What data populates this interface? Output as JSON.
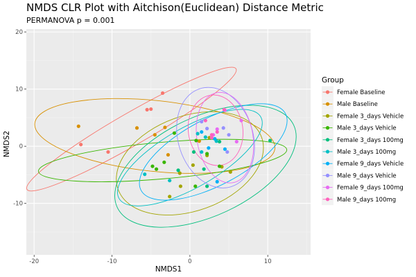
{
  "chart_data": {
    "type": "scatter",
    "title": "NMDS CLR Plot with Aitchison(Euclidean) Distance Metric",
    "subtitle": "PERMANOVA p = 0.001",
    "xlabel": "NMDS1",
    "ylabel": "NMDS2",
    "xlim": [
      -21,
      15.5
    ],
    "ylim": [
      -19,
      20.5
    ],
    "x_ticks": [
      -20,
      -10,
      0,
      10
    ],
    "y_ticks": [
      -10,
      0,
      10,
      20
    ],
    "grid": true,
    "legend_title": "Group",
    "legend_position": "right",
    "series": [
      {
        "name": "Female Baseline",
        "color": "#F8766D",
        "points": [
          [
            -3.5,
            9.3
          ],
          [
            -5.5,
            6.4
          ],
          [
            -5.0,
            6.5
          ],
          [
            -10.5,
            -1.0
          ],
          [
            -14.0,
            0.3
          ]
        ],
        "ellipse": {
          "cx": -7.5,
          "cy": 3.0,
          "rx": 15.5,
          "ry": 2.8,
          "angle": 30
        }
      },
      {
        "name": "Male Baseline",
        "color": "#D89000",
        "points": [
          [
            -14.3,
            3.5
          ],
          [
            -6.8,
            3.2
          ],
          [
            -4.5,
            2.0
          ],
          [
            -3.2,
            3.3
          ],
          [
            -2.8,
            -1.5
          ],
          [
            1.2,
            0.9
          ]
        ],
        "ellipse": {
          "cx": -4.5,
          "cy": 1.8,
          "rx": 15.5,
          "ry": 6.2,
          "angle": -6
        }
      },
      {
        "name": "Female 3_days Vehicle",
        "color": "#A3A500",
        "points": [
          [
            -2.6,
            -8.8
          ],
          [
            -1.2,
            -7.0
          ],
          [
            -1.3,
            -4.7
          ],
          [
            0.4,
            -3.3
          ],
          [
            2.2,
            -1.6
          ],
          [
            4.1,
            -3.6
          ],
          [
            5.2,
            -4.5
          ],
          [
            2.5,
            1.5
          ]
        ],
        "ellipse": {
          "cx": 0.0,
          "cy": -3.0,
          "rx": 9.8,
          "ry": 8.3,
          "angle": 20
        }
      },
      {
        "name": "Male 3_days Vehicle",
        "color": "#39B600",
        "points": [
          [
            -4.8,
            -3.5
          ],
          [
            -4.3,
            -4.0
          ],
          [
            -3.3,
            -2.8
          ],
          [
            -2.0,
            2.3
          ],
          [
            0.7,
            -7.0
          ],
          [
            2.2,
            -1.3
          ],
          [
            3.8,
            -3.5
          ],
          [
            0.8,
            1.0
          ]
        ],
        "ellipse": {
          "cx": -3.5,
          "cy": -2.5,
          "rx": 16.0,
          "ry": 3.2,
          "angle": 5
        }
      },
      {
        "name": "Female 3_days 100mg",
        "color": "#00BF7D",
        "points": [
          [
            -1.5,
            -4.2
          ],
          [
            1.8,
            -4.0
          ],
          [
            2.2,
            -7.0
          ],
          [
            10.3,
            1.0
          ],
          [
            3.8,
            0.8
          ],
          [
            0.5,
            -1.0
          ]
        ],
        "ellipse": {
          "cx": 2.0,
          "cy": -3.5,
          "rx": 12.5,
          "ry": 8.7,
          "angle": 25
        }
      },
      {
        "name": "Male 3_days 100mg",
        "color": "#00BFC4",
        "points": [
          [
            -2.6,
            -6.0
          ],
          [
            -5.8,
            -4.9
          ],
          [
            1.0,
            2.2
          ],
          [
            2.0,
            1.6
          ],
          [
            3.4,
            0.9
          ],
          [
            1.5,
            -1.0
          ]
        ],
        "ellipse": {
          "cx": 0.0,
          "cy": -2.0,
          "rx": 10.5,
          "ry": 5.2,
          "angle": 30
        }
      },
      {
        "name": "Female 9_days Vehicle",
        "color": "#00B0F6",
        "points": [
          [
            1.5,
            2.5
          ],
          [
            3.5,
            -6.2
          ],
          [
            4.5,
            -0.5
          ],
          [
            3.2,
            1.3
          ],
          [
            2.4,
            -0.3
          ]
        ],
        "ellipse": {
          "cx": 3.0,
          "cy": -1.0,
          "rx": 10.5,
          "ry": 5.8,
          "angle": 28
        }
      },
      {
        "name": "Male 9_days Vehicle",
        "color": "#9590FF",
        "points": [
          [
            1.5,
            4.3
          ],
          [
            2.2,
            3.1
          ],
          [
            4.3,
            3.2
          ],
          [
            5.0,
            2.0
          ],
          [
            4.8,
            -1.0
          ]
        ],
        "ellipse": {
          "cx": 3.3,
          "cy": 1.5,
          "rx": 4.8,
          "ry": 9.0,
          "angle": 18
        }
      },
      {
        "name": "Female 9_days 100mg",
        "color": "#E76BF3",
        "points": [
          [
            3.5,
            3.0
          ],
          [
            4.5,
            6.3
          ],
          [
            3.0,
            2.0
          ],
          [
            6.0,
            0.8
          ],
          [
            6.6,
            4.5
          ]
        ],
        "ellipse": {
          "cx": 4.5,
          "cy": 1.5,
          "rx": 3.6,
          "ry": 8.0,
          "angle": 10
        }
      },
      {
        "name": "Male 9_days 100mg",
        "color": "#FF62BC",
        "points": [
          [
            2.0,
            4.5
          ],
          [
            4.4,
            6.4
          ],
          [
            2.8,
            2.0
          ],
          [
            2.8,
            1.5
          ],
          [
            3.5,
            2.5
          ]
        ],
        "ellipse": {
          "cx": 3.3,
          "cy": 2.8,
          "rx": 3.5,
          "ry": 6.2,
          "angle": 8
        }
      }
    ]
  }
}
